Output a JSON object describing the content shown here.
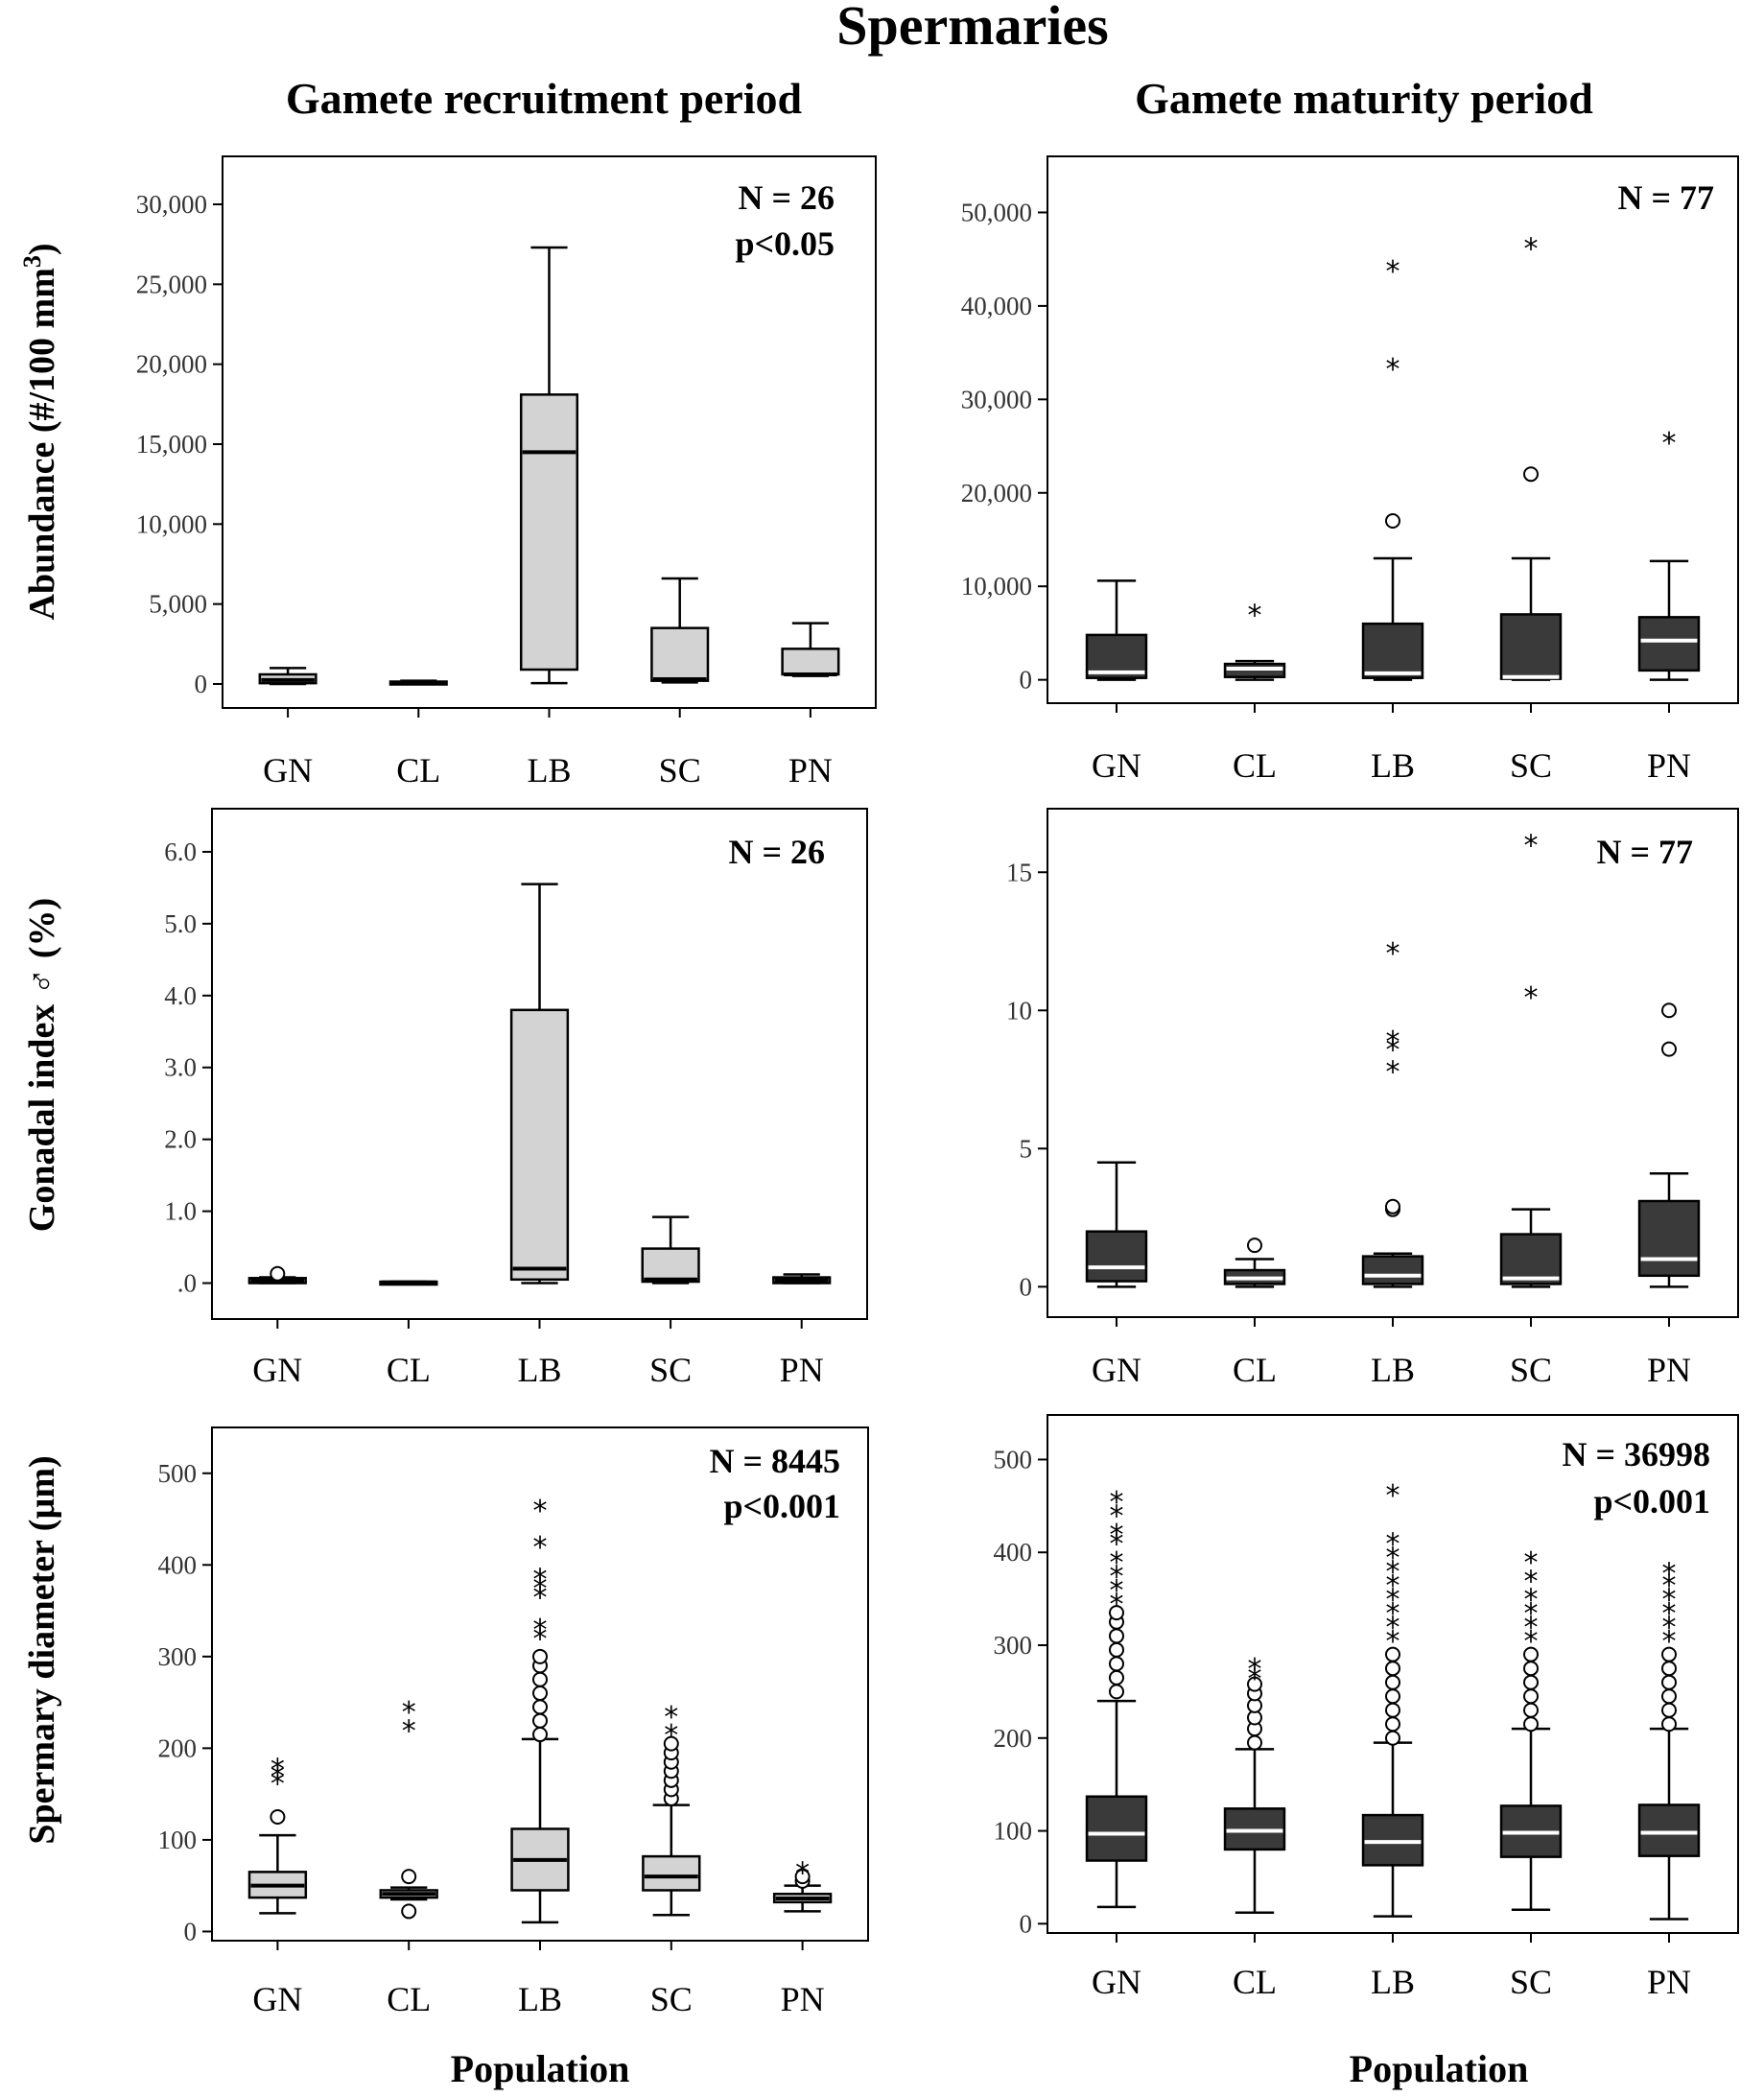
{
  "figure": {
    "title": "Spermaries",
    "columns": [
      "Gamete recruitment period",
      "Gamete maturity period"
    ],
    "xlabel": "Population"
  },
  "colors": {
    "recruitment_box": "#d3d3d3",
    "maturity_box": "#3a3a3a",
    "maturity_median": "#ffffff",
    "line": "#000000"
  },
  "chart_data": [
    {
      "type": "boxplot",
      "id": "abundance-recruitment",
      "column": "Gamete recruitment period",
      "ylabel": "Abundance (#/100 mm",
      "ylabel_sup": "3",
      "ylabel_close": ")",
      "annotations": [
        "N = 26",
        "p<0.05"
      ],
      "ylim": [
        -1500,
        33000
      ],
      "yticks": [
        0,
        5000,
        10000,
        15000,
        20000,
        25000,
        30000
      ],
      "ytick_labels": [
        "0",
        "5,000",
        "10,000",
        "15,000",
        "20,000",
        "25,000",
        "30,000"
      ],
      "categories": [
        "GN",
        "CL",
        "LB",
        "SC",
        "PN"
      ],
      "boxes": [
        {
          "min": 0,
          "q1": 50,
          "median": 250,
          "q3": 600,
          "max": 1000,
          "outliers": [],
          "extremes": []
        },
        {
          "min": 0,
          "q1": 0,
          "median": 50,
          "q3": 150,
          "max": 200,
          "outliers": [],
          "extremes": []
        },
        {
          "min": 50,
          "q1": 900,
          "median": 14500,
          "q3": 18100,
          "max": 27300,
          "outliers": [],
          "extremes": []
        },
        {
          "min": 100,
          "q1": 200,
          "median": 300,
          "q3": 3500,
          "max": 6600,
          "outliers": [],
          "extremes": []
        },
        {
          "min": 500,
          "q1": 600,
          "median": 600,
          "q3": 2200,
          "max": 3800,
          "outliers": [],
          "extremes": []
        }
      ]
    },
    {
      "type": "boxplot",
      "id": "abundance-maturity",
      "column": "Gamete maturity period",
      "ylabel": "",
      "annotations": [
        "N = 77"
      ],
      "ylim": [
        -2500,
        56000
      ],
      "yticks": [
        0,
        10000,
        20000,
        30000,
        40000,
        50000
      ],
      "ytick_labels": [
        "0",
        "10,000",
        "20,000",
        "30,000",
        "40,000",
        "50,000"
      ],
      "categories": [
        "GN",
        "CL",
        "LB",
        "SC",
        "PN"
      ],
      "boxes": [
        {
          "min": 0,
          "q1": 200,
          "median": 800,
          "q3": 4800,
          "max": 10600,
          "outliers": [],
          "extremes": []
        },
        {
          "min": 0,
          "q1": 300,
          "median": 1200,
          "q3": 1700,
          "max": 2000,
          "outliers": [],
          "extremes": [
            7000
          ]
        },
        {
          "min": 0,
          "q1": 200,
          "median": 700,
          "q3": 6000,
          "max": 13000,
          "outliers": [
            17000
          ],
          "extremes": [
            33300,
            43800
          ]
        },
        {
          "min": 0,
          "q1": 100,
          "median": 300,
          "q3": 7000,
          "max": 13000,
          "outliers": [
            22000
          ],
          "extremes": [
            46200
          ]
        },
        {
          "min": 0,
          "q1": 1000,
          "median": 4200,
          "q3": 6700,
          "max": 12700,
          "outliers": [],
          "extremes": [
            25400
          ]
        }
      ]
    },
    {
      "type": "boxplot",
      "id": "gonadal-recruitment",
      "column": "Gamete recruitment period",
      "ylabel": "Gonadal index ♂ (%)",
      "annotations": [
        "N = 26"
      ],
      "ylim": [
        -0.5,
        6.6
      ],
      "yticks": [
        0,
        1,
        2,
        3,
        4,
        5,
        6
      ],
      "ytick_labels": [
        ".0",
        "1.0",
        "2.0",
        "3.0",
        "4.0",
        "5.0",
        "6.0"
      ],
      "categories": [
        "GN",
        "CL",
        "LB",
        "SC",
        "PN"
      ],
      "boxes": [
        {
          "min": 0,
          "q1": 0.0,
          "median": 0.03,
          "q3": 0.07,
          "max": 0.08,
          "outliers": [
            0.13
          ],
          "extremes": []
        },
        {
          "min": 0,
          "q1": 0.0,
          "median": 0.01,
          "q3": 0.02,
          "max": 0.02,
          "outliers": [],
          "extremes": []
        },
        {
          "min": 0,
          "q1": 0.05,
          "median": 0.2,
          "q3": 3.8,
          "max": 5.55,
          "outliers": [],
          "extremes": []
        },
        {
          "min": 0,
          "q1": 0.02,
          "median": 0.05,
          "q3": 0.48,
          "max": 0.92,
          "outliers": [],
          "extremes": []
        },
        {
          "min": 0,
          "q1": 0.0,
          "median": 0.04,
          "q3": 0.08,
          "max": 0.12,
          "outliers": [],
          "extremes": []
        }
      ]
    },
    {
      "type": "boxplot",
      "id": "gonadal-maturity",
      "column": "Gamete maturity period",
      "ylabel": "",
      "annotations": [
        "N = 77"
      ],
      "ylim": [
        -1.1,
        17.3
      ],
      "yticks": [
        0,
        5,
        10,
        15
      ],
      "ytick_labels": [
        "0",
        "5",
        "10",
        "15"
      ],
      "categories": [
        "GN",
        "CL",
        "LB",
        "SC",
        "PN"
      ],
      "boxes": [
        {
          "min": 0,
          "q1": 0.2,
          "median": 0.7,
          "q3": 2.0,
          "max": 4.5,
          "outliers": [],
          "extremes": []
        },
        {
          "min": 0,
          "q1": 0.1,
          "median": 0.3,
          "q3": 0.6,
          "max": 1.0,
          "outliers": [
            1.5
          ],
          "extremes": []
        },
        {
          "min": 0,
          "q1": 0.1,
          "median": 0.4,
          "q3": 1.1,
          "max": 1.2,
          "outliers": [
            2.8,
            2.9
          ],
          "extremes": [
            7.8,
            8.6,
            8.9,
            12.1
          ]
        },
        {
          "min": 0,
          "q1": 0.1,
          "median": 0.3,
          "q3": 1.9,
          "max": 2.8,
          "outliers": [],
          "extremes": [
            10.5,
            16.0
          ]
        },
        {
          "min": 0,
          "q1": 0.4,
          "median": 1.0,
          "q3": 3.1,
          "max": 4.1,
          "outliers": [
            8.6,
            10.0
          ],
          "extremes": []
        }
      ]
    },
    {
      "type": "boxplot",
      "id": "diameter-recruitment",
      "column": "Gamete recruitment period",
      "ylabel": "Spermary diameter (µm)",
      "annotations": [
        "N = 8445",
        "p<0.001"
      ],
      "ylim": [
        -10,
        550
      ],
      "yticks": [
        0,
        100,
        200,
        300,
        400,
        500
      ],
      "ytick_labels": [
        "0",
        "100",
        "200",
        "300",
        "400",
        "500"
      ],
      "categories": [
        "GN",
        "CL",
        "LB",
        "SC",
        "PN"
      ],
      "boxes": [
        {
          "min": 20,
          "q1": 37,
          "median": 50,
          "q3": 65,
          "max": 105,
          "outliers": [
            125
          ],
          "extremes": [
            162,
            170,
            178
          ]
        },
        {
          "min": 35,
          "q1": 37,
          "median": 41,
          "q3": 45,
          "max": 48,
          "outliers": [
            22,
            60
          ],
          "extremes": [
            220,
            240
          ]
        },
        {
          "min": 10,
          "q1": 45,
          "median": 78,
          "q3": 112,
          "max": 210,
          "outliers": [
            215,
            230,
            245,
            260,
            275,
            290,
            300
          ],
          "extremes": [
            320,
            330,
            365,
            375,
            385,
            420,
            460
          ]
        },
        {
          "min": 18,
          "q1": 45,
          "median": 60,
          "q3": 82,
          "max": 138,
          "outliers": [
            145,
            155,
            165,
            175,
            185,
            195,
            205
          ],
          "extremes": [
            215,
            235
          ]
        },
        {
          "min": 22,
          "q1": 32,
          "median": 36,
          "q3": 41,
          "max": 50,
          "outliers": [
            55,
            60
          ],
          "extremes": [
            65
          ]
        }
      ]
    },
    {
      "type": "boxplot",
      "id": "diameter-maturity",
      "column": "Gamete maturity period",
      "ylabel": "",
      "annotations": [
        "N = 36998",
        "p<0.001"
      ],
      "ylim": [
        -10,
        548
      ],
      "yticks": [
        0,
        100,
        200,
        300,
        400,
        500
      ],
      "ytick_labels": [
        "0",
        "100",
        "200",
        "300",
        "400",
        "500"
      ],
      "categories": [
        "GN",
        "CL",
        "LB",
        "SC",
        "PN"
      ],
      "boxes": [
        {
          "min": 18,
          "q1": 68,
          "median": 97,
          "q3": 137,
          "max": 240,
          "outliers": [
            250,
            265,
            280,
            295,
            310,
            325,
            335
          ],
          "extremes": [
            345,
            360,
            375,
            390,
            410,
            420,
            440,
            455
          ]
        },
        {
          "min": 12,
          "q1": 80,
          "median": 100,
          "q3": 124,
          "max": 188,
          "outliers": [
            195,
            210,
            222,
            235,
            248,
            258
          ],
          "extremes": [
            265,
            275
          ]
        },
        {
          "min": 8,
          "q1": 63,
          "median": 88,
          "q3": 117,
          "max": 195,
          "outliers": [
            200,
            215,
            230,
            245,
            260,
            275,
            290
          ],
          "extremes": [
            305,
            320,
            335,
            350,
            365,
            380,
            395,
            410,
            462
          ]
        },
        {
          "min": 15,
          "q1": 72,
          "median": 98,
          "q3": 127,
          "max": 210,
          "outliers": [
            215,
            230,
            245,
            260,
            275,
            290
          ],
          "extremes": [
            305,
            320,
            335,
            350,
            370,
            390
          ]
        },
        {
          "min": 5,
          "q1": 73,
          "median": 98,
          "q3": 128,
          "max": 210,
          "outliers": [
            215,
            230,
            245,
            260,
            275,
            290
          ],
          "extremes": [
            305,
            320,
            335,
            350,
            365,
            378
          ]
        }
      ]
    }
  ]
}
